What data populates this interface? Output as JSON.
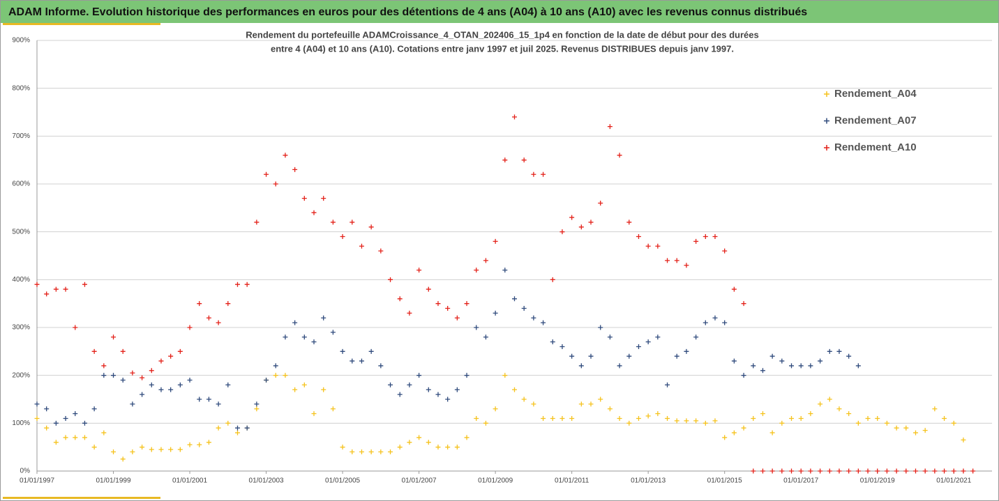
{
  "header": {
    "title": "ADAM Informe. Evolution historique des performances en euros pour des détentions de 4 ans (A04) à 10 ans (A10) avec les revenus connus distribués"
  },
  "chart_data": {
    "type": "scatter",
    "title": [
      "Rendement du portefeuille ADAMCroissance_4_OTAN_202406_15_1p4  en fonction de la date de début pour des durées",
      "entre 4 (A04) et 10 ans (A10). Cotations  entre janv 1997 et juil 2025. Revenus DISTRIBUES depuis janv 1997."
    ],
    "xlim": [
      1997,
      2022
    ],
    "xticks": [
      {
        "value": 1997,
        "label": "01/01/1997"
      },
      {
        "value": 1999,
        "label": "01/01/1999"
      },
      {
        "value": 2001,
        "label": "01/01/2001"
      },
      {
        "value": 2003,
        "label": "01/01/2003"
      },
      {
        "value": 2005,
        "label": "01/01/2005"
      },
      {
        "value": 2007,
        "label": "01/01/2007"
      },
      {
        "value": 2009,
        "label": "01/01/2009"
      },
      {
        "value": 2011,
        "label": "01/01/2011"
      },
      {
        "value": 2013,
        "label": "01/01/2013"
      },
      {
        "value": 2015,
        "label": "01/01/2015"
      },
      {
        "value": 2017,
        "label": "01/01/2017"
      },
      {
        "value": 2019,
        "label": "01/01/2019"
      },
      {
        "value": 2021,
        "label": "01/01/2021"
      }
    ],
    "ylim": [
      0,
      900
    ],
    "yticks": [
      {
        "value": 0,
        "label": "0%"
      },
      {
        "value": 100,
        "label": "100%"
      },
      {
        "value": 200,
        "label": "200%"
      },
      {
        "value": 300,
        "label": "300%"
      },
      {
        "value": 400,
        "label": "400%"
      },
      {
        "value": 500,
        "label": "500%"
      },
      {
        "value": 600,
        "label": "600%"
      },
      {
        "value": 700,
        "label": "700%"
      },
      {
        "value": 800,
        "label": "800%"
      },
      {
        "value": 900,
        "label": "900%"
      }
    ],
    "grid": true,
    "legend": "right",
    "series": [
      {
        "name": "Rendement_A04",
        "color": "#f5c21c",
        "x": [
          1997,
          1997.25,
          1997.5,
          1997.75,
          1998,
          1998.25,
          1998.5,
          1998.75,
          1999,
          1999.25,
          1999.5,
          1999.75,
          2000,
          2000.25,
          2000.5,
          2000.75,
          2001,
          2001.25,
          2001.5,
          2001.75,
          2002,
          2002.25,
          2002.5,
          2002.75,
          2003,
          2003.25,
          2003.5,
          2003.75,
          2004,
          2004.25,
          2004.5,
          2004.75,
          2005,
          2005.25,
          2005.5,
          2005.75,
          2006,
          2006.25,
          2006.5,
          2006.75,
          2007,
          2007.25,
          2007.5,
          2007.75,
          2008,
          2008.25,
          2008.5,
          2008.75,
          2009,
          2009.25,
          2009.5,
          2009.75,
          2010,
          2010.25,
          2010.5,
          2010.75,
          2011,
          2011.25,
          2011.5,
          2011.75,
          2012,
          2012.25,
          2012.5,
          2012.75,
          2013,
          2013.25,
          2013.5,
          2013.75,
          2014,
          2014.25,
          2014.5,
          2014.75,
          2015,
          2015.25,
          2015.5,
          2015.75,
          2016,
          2016.25,
          2016.5,
          2016.75,
          2017,
          2017.25,
          2017.5,
          2017.75,
          2018,
          2018.25,
          2018.5,
          2018.75,
          2019,
          2019.25,
          2019.5,
          2019.75,
          2020,
          2020.25,
          2020.5,
          2020.75,
          2021,
          2021.25
        ],
        "values": [
          110,
          90,
          60,
          70,
          70,
          70,
          50,
          80,
          40,
          25,
          40,
          50,
          45,
          45,
          45,
          45,
          55,
          55,
          60,
          90,
          100,
          80,
          90,
          130,
          190,
          200,
          200,
          170,
          180,
          120,
          170,
          130,
          50,
          40,
          40,
          40,
          40,
          40,
          50,
          60,
          70,
          60,
          50,
          50,
          50,
          70,
          110,
          100,
          130,
          200,
          170,
          150,
          140,
          110,
          110,
          110,
          110,
          140,
          140,
          150,
          130,
          110,
          100,
          110,
          115,
          120,
          110,
          105,
          105,
          105,
          100,
          105,
          70,
          80,
          90,
          110,
          120,
          80,
          100,
          110,
          110,
          120,
          140,
          150,
          130,
          120,
          100,
          110,
          110,
          100,
          90,
          90,
          80,
          85,
          130,
          110,
          100,
          65
        ]
      },
      {
        "name": "Rendement_A07",
        "color": "#2f4a7c",
        "x": [
          1997,
          1997.25,
          1997.5,
          1997.75,
          1998,
          1998.25,
          1998.5,
          1998.75,
          1999,
          1999.25,
          1999.5,
          1999.75,
          2000,
          2000.25,
          2000.5,
          2000.75,
          2001,
          2001.25,
          2001.5,
          2001.75,
          2002,
          2002.25,
          2002.5,
          2002.75,
          2003,
          2003.25,
          2003.5,
          2003.75,
          2004,
          2004.25,
          2004.5,
          2004.75,
          2005,
          2005.25,
          2005.5,
          2005.75,
          2006,
          2006.25,
          2006.5,
          2006.75,
          2007,
          2007.25,
          2007.5,
          2007.75,
          2008,
          2008.25,
          2008.5,
          2008.75,
          2009,
          2009.25,
          2009.5,
          2009.75,
          2010,
          2010.25,
          2010.5,
          2010.75,
          2011,
          2011.25,
          2011.5,
          2011.75,
          2012,
          2012.25,
          2012.5,
          2012.75,
          2013,
          2013.25,
          2013.5,
          2013.75,
          2014,
          2014.25,
          2014.5,
          2014.75,
          2015,
          2015.25,
          2015.5,
          2015.75,
          2016,
          2016.25,
          2016.5,
          2016.75,
          2017,
          2017.25,
          2017.5,
          2017.75,
          2018,
          2018.25,
          2018.5
        ],
        "values": [
          140,
          130,
          100,
          110,
          120,
          100,
          130,
          200,
          200,
          190,
          140,
          160,
          180,
          170,
          170,
          180,
          190,
          150,
          150,
          140,
          180,
          90,
          90,
          140,
          190,
          220,
          280,
          310,
          280,
          270,
          320,
          290,
          250,
          230,
          230,
          250,
          220,
          180,
          160,
          180,
          200,
          170,
          160,
          150,
          170,
          200,
          300,
          280,
          330,
          420,
          360,
          340,
          320,
          310,
          270,
          260,
          240,
          220,
          240,
          300,
          280,
          220,
          240,
          260,
          270,
          280,
          180,
          240,
          250,
          280,
          310,
          320,
          310,
          230,
          200,
          220,
          210,
          240,
          230,
          220,
          220,
          220,
          230,
          250,
          250,
          240,
          220
        ]
      },
      {
        "name": "Rendement_A10",
        "color": "#e32119",
        "x": [
          1997,
          1997.25,
          1997.5,
          1997.75,
          1998,
          1998.25,
          1998.5,
          1998.75,
          1999,
          1999.25,
          1999.5,
          1999.75,
          2000,
          2000.25,
          2000.5,
          2000.75,
          2001,
          2001.25,
          2001.5,
          2001.75,
          2002,
          2002.25,
          2002.5,
          2002.75,
          2003,
          2003.25,
          2003.5,
          2003.75,
          2004,
          2004.25,
          2004.5,
          2004.75,
          2005,
          2005.25,
          2005.5,
          2005.75,
          2006,
          2006.25,
          2006.5,
          2006.75,
          2007,
          2007.25,
          2007.5,
          2007.75,
          2008,
          2008.25,
          2008.5,
          2008.75,
          2009,
          2009.25,
          2009.5,
          2009.75,
          2010,
          2010.25,
          2010.5,
          2010.75,
          2011,
          2011.25,
          2011.5,
          2011.75,
          2012,
          2012.25,
          2012.5,
          2012.75,
          2013,
          2013.25,
          2013.5,
          2013.75,
          2014,
          2014.25,
          2014.5,
          2014.75,
          2015,
          2015.25,
          2015.5,
          2015.75,
          2016,
          2016.25,
          2016.5,
          2016.75,
          2017,
          2017.25,
          2017.5,
          2017.75,
          2018,
          2018.25,
          2018.5,
          2018.75,
          2019,
          2019.25,
          2019.5,
          2019.75,
          2020,
          2020.25,
          2020.5,
          2020.75,
          2021,
          2021.25,
          2021.5
        ],
        "values": [
          390,
          370,
          380,
          380,
          300,
          390,
          250,
          220,
          280,
          250,
          205,
          195,
          210,
          230,
          240,
          250,
          300,
          350,
          320,
          310,
          350,
          390,
          390,
          520,
          620,
          600,
          660,
          630,
          570,
          540,
          570,
          520,
          490,
          520,
          470,
          510,
          460,
          400,
          360,
          330,
          420,
          380,
          350,
          340,
          320,
          350,
          420,
          440,
          480,
          650,
          740,
          650,
          620,
          620,
          400,
          500,
          530,
          510,
          520,
          560,
          720,
          660,
          520,
          490,
          470,
          470,
          440,
          440,
          430,
          480,
          490,
          490,
          460,
          380,
          350,
          0,
          0,
          0,
          0,
          0,
          0,
          0,
          0,
          0,
          0,
          0,
          0,
          0,
          0,
          0,
          0,
          0,
          0,
          0,
          0,
          0,
          0,
          0,
          0
        ]
      }
    ]
  }
}
